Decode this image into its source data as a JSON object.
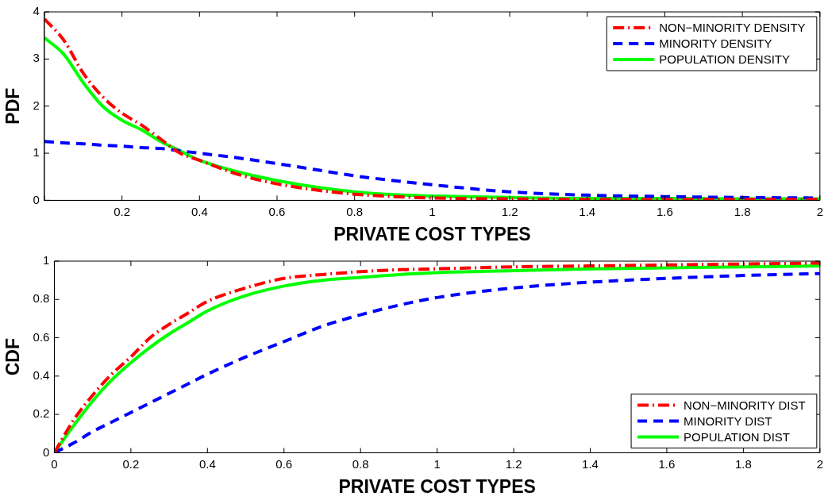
{
  "chart_data": [
    {
      "type": "line",
      "ylabel": "PDF",
      "xlabel": "PRIVATE COST TYPES",
      "xlim": [
        0,
        2
      ],
      "xticks": [
        {
          "value": 0,
          "label": null
        },
        0.2,
        0.4,
        0.6,
        0.8,
        1,
        1.2,
        1.4,
        1.6,
        1.8,
        2
      ],
      "ylim": [
        0,
        4
      ],
      "yticks": [
        0,
        1,
        2,
        3,
        4
      ],
      "legend": "top right",
      "grid": false,
      "marker": "none",
      "x": [
        0,
        0.05,
        0.1,
        0.15,
        0.2,
        0.25,
        0.3,
        0.35,
        0.4,
        0.5,
        0.6,
        0.7,
        0.8,
        0.9,
        1.0,
        1.2,
        1.4,
        1.6,
        1.8,
        2.0
      ],
      "series": [
        {
          "name": "NON−MINORITY DENSITY",
          "color": "#ff0000",
          "line_style": "dashdot",
          "values": [
            3.85,
            3.4,
            2.7,
            2.2,
            1.85,
            1.6,
            1.3,
            1.0,
            0.85,
            0.55,
            0.35,
            0.22,
            0.13,
            0.08,
            0.05,
            0.03,
            0.02,
            0.02,
            0.02,
            0.02
          ]
        },
        {
          "name": "MINORITY DENSITY",
          "color": "#0000ff",
          "line_style": "dashed",
          "values": [
            1.25,
            1.22,
            1.2,
            1.17,
            1.15,
            1.12,
            1.1,
            1.05,
            1.0,
            0.9,
            0.78,
            0.65,
            0.52,
            0.42,
            0.33,
            0.18,
            0.11,
            0.08,
            0.06,
            0.05
          ]
        },
        {
          "name": "POPULATION DENSITY",
          "color": "#00ff00",
          "line_style": "solid",
          "values": [
            3.45,
            3.1,
            2.5,
            2.0,
            1.7,
            1.5,
            1.25,
            1.05,
            0.85,
            0.6,
            0.42,
            0.28,
            0.18,
            0.12,
            0.09,
            0.06,
            0.04,
            0.04,
            0.03,
            0.03
          ]
        }
      ]
    },
    {
      "type": "line",
      "ylabel": "CDF",
      "xlabel": "PRIVATE COST TYPES",
      "xlim": [
        0,
        2
      ],
      "xticks": [
        0,
        0.2,
        0.4,
        0.6,
        0.8,
        1,
        1.2,
        1.4,
        1.6,
        1.8,
        2
      ],
      "ylim": [
        0,
        1
      ],
      "yticks": [
        0,
        0.2,
        0.4,
        0.6,
        0.8,
        1
      ],
      "legend": "bottom right",
      "grid": false,
      "marker": "none",
      "x": [
        0,
        0.05,
        0.1,
        0.15,
        0.2,
        0.25,
        0.3,
        0.35,
        0.4,
        0.5,
        0.6,
        0.7,
        0.8,
        0.9,
        1.0,
        1.2,
        1.4,
        1.6,
        1.8,
        2.0
      ],
      "series": [
        {
          "name": "NON−MINORITY DIST",
          "color": "#ff0000",
          "line_style": "dashdot",
          "values": [
            0,
            0.17,
            0.3,
            0.41,
            0.5,
            0.6,
            0.67,
            0.73,
            0.79,
            0.86,
            0.91,
            0.93,
            0.945,
            0.955,
            0.96,
            0.97,
            0.975,
            0.98,
            0.985,
            0.99
          ]
        },
        {
          "name": "MINORITY DIST",
          "color": "#0000ff",
          "line_style": "dashed",
          "values": [
            0,
            0.05,
            0.11,
            0.16,
            0.21,
            0.26,
            0.31,
            0.36,
            0.41,
            0.5,
            0.58,
            0.66,
            0.72,
            0.77,
            0.81,
            0.86,
            0.89,
            0.91,
            0.925,
            0.935
          ]
        },
        {
          "name": "POPULATION DIST",
          "color": "#00ff00",
          "line_style": "solid",
          "values": [
            0,
            0.14,
            0.27,
            0.38,
            0.47,
            0.55,
            0.62,
            0.68,
            0.74,
            0.82,
            0.87,
            0.9,
            0.915,
            0.93,
            0.94,
            0.95,
            0.96,
            0.965,
            0.97,
            0.975
          ]
        }
      ]
    }
  ]
}
